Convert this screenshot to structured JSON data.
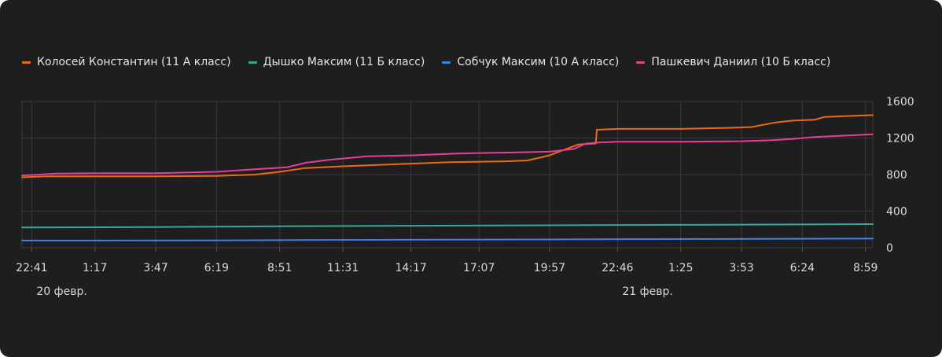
{
  "chart_data": {
    "type": "line",
    "x_ticks": [
      "22:41",
      "1:17",
      "3:47",
      "6:19",
      "8:51",
      "11:31",
      "14:17",
      "17:07",
      "19:57",
      "22:46",
      "1:25",
      "3:53",
      "6:24",
      "8:59"
    ],
    "date_labels": [
      {
        "label": "20 февр.",
        "at_tick": 0
      },
      {
        "label": "21 февр.",
        "at_tick": 9
      }
    ],
    "y_ticks": [
      "0",
      "400",
      "800",
      "1200",
      "1600"
    ],
    "ylim": [
      0,
      1600
    ],
    "grid": true,
    "y_axis_side": "right",
    "legend_position": "top-left",
    "x_tick_values": [
      0,
      2.6,
      5.1,
      7.6,
      10.2,
      12.8,
      15.6,
      18.4,
      21.3,
      24.1,
      26.7,
      29.2,
      31.7,
      34.3
    ],
    "series": [
      {
        "name": "Колосей Константин (11 А класс)",
        "color": "#eb6a12",
        "x": [
          -0.4,
          0.6,
          2.6,
          5.1,
          7.6,
          9.2,
          10.2,
          11.2,
          12.8,
          15.6,
          17.2,
          19.5,
          20.4,
          21.3,
          22.5,
          23.2,
          23.25,
          24.1,
          26.7,
          28.5,
          29.6,
          30.6,
          31.3,
          32.2,
          32.6,
          33.5,
          34.6
        ],
        "values": [
          770,
          780,
          780,
          780,
          785,
          800,
          830,
          870,
          890,
          920,
          935,
          945,
          955,
          1010,
          1130,
          1140,
          1290,
          1300,
          1300,
          1310,
          1320,
          1370,
          1390,
          1400,
          1430,
          1440,
          1450
        ]
      },
      {
        "name": "Дышко Максим (11 Б класс)",
        "color": "#33a89c",
        "x": [
          -0.4,
          5.1,
          10.2,
          15.6,
          21.3,
          26.7,
          31.7,
          34.6
        ],
        "values": [
          222,
          225,
          235,
          240,
          245,
          250,
          255,
          258
        ]
      },
      {
        "name": "Собчук Максим (10 А класс)",
        "color": "#3a82f0",
        "x": [
          -0.4,
          7.6,
          12.8,
          21.3,
          26.7,
          31.7,
          34.6
        ],
        "values": [
          78,
          80,
          85,
          90,
          95,
          98,
          100
        ]
      },
      {
        "name": "Пашкевич Даниил (10 Б класс)",
        "color": "#e63d9b",
        "x": [
          -0.4,
          1.0,
          2.6,
          5.1,
          7.6,
          9.3,
          10.5,
          11.3,
          12.2,
          13.8,
          15.6,
          17.5,
          21.3,
          22.3,
          22.8,
          23.3,
          24.1,
          26.7,
          29.2,
          30.4,
          31.3,
          32.2,
          34.6
        ],
        "values": [
          790,
          810,
          815,
          815,
          830,
          860,
          880,
          930,
          960,
          1000,
          1010,
          1030,
          1050,
          1080,
          1140,
          1150,
          1160,
          1160,
          1165,
          1175,
          1190,
          1210,
          1240
        ]
      }
    ]
  }
}
